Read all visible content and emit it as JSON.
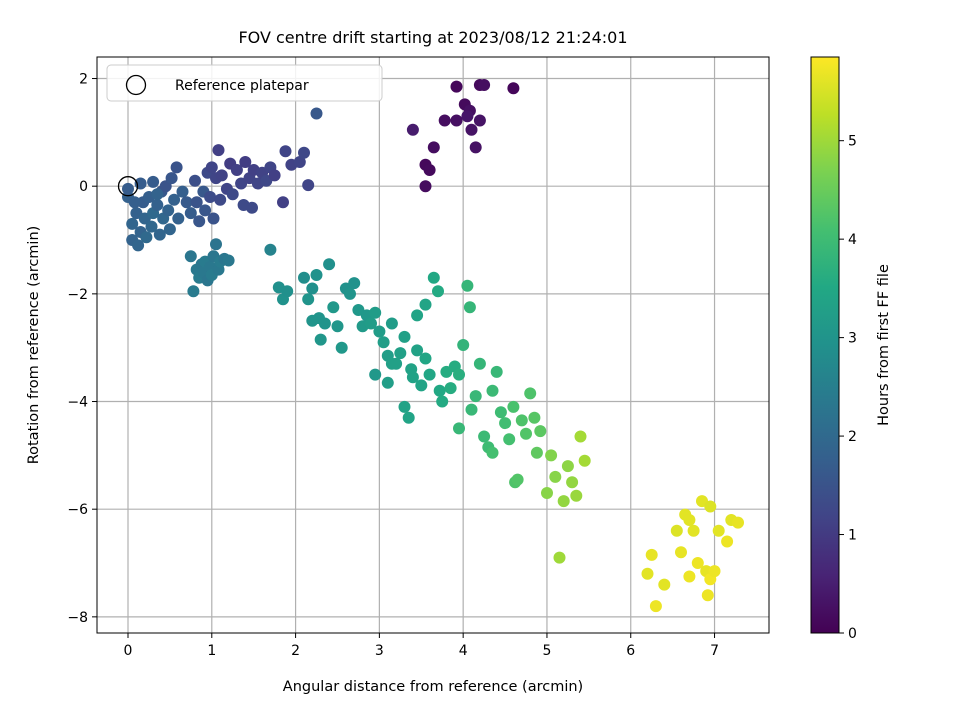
{
  "chart_data": {
    "type": "scatter",
    "title": "FOV centre drift starting at 2023/08/12 21:24:01",
    "xlabel": "Angular distance from reference (arcmin)",
    "ylabel": "Rotation from reference (arcmin)",
    "xlim": [
      -0.37,
      7.65
    ],
    "ylim": [
      -8.3,
      2.4
    ],
    "xticks": [
      0,
      1,
      2,
      3,
      4,
      5,
      6,
      7
    ],
    "yticks": [
      -8,
      -6,
      -4,
      -2,
      0,
      2
    ],
    "grid": true,
    "colormap": "viridis",
    "colorbar": {
      "label": "Hours from first FF file",
      "range": [
        0,
        5.85
      ],
      "ticks": [
        0,
        1,
        2,
        3,
        4,
        5
      ]
    },
    "legend": {
      "position": "top-left",
      "entries": [
        "Reference platepar"
      ]
    },
    "reference_point": {
      "x": 0,
      "y": 0
    },
    "series": [
      {
        "points": [
          [
            3.4,
            1.05,
            0.45
          ],
          [
            3.55,
            0.4,
            0.12
          ],
          [
            3.6,
            0.3,
            0.15
          ],
          [
            3.55,
            0.0,
            0.18
          ],
          [
            3.65,
            0.72,
            0.2
          ],
          [
            3.78,
            1.22,
            0.22
          ],
          [
            3.92,
            1.22,
            0.25
          ],
          [
            3.92,
            1.85,
            0.1
          ],
          [
            4.02,
            1.52,
            0.15
          ],
          [
            4.08,
            1.4,
            0.25
          ],
          [
            4.2,
            1.22,
            0.3
          ],
          [
            4.2,
            1.88,
            0.15
          ],
          [
            4.25,
            1.88,
            0.22
          ],
          [
            4.1,
            1.05,
            0.3
          ],
          [
            4.15,
            0.72,
            0.28
          ],
          [
            4.6,
            1.82,
            0.1
          ],
          [
            4.05,
            1.3,
            0.35
          ],
          [
            0.0,
            -0.2,
            1.8
          ],
          [
            0.05,
            -0.7,
            1.9
          ],
          [
            0.05,
            -1.0,
            1.85
          ],
          [
            0.1,
            -0.5,
            1.8
          ],
          [
            0.12,
            -1.1,
            1.9
          ],
          [
            0.15,
            -0.85,
            1.85
          ],
          [
            0.18,
            -0.3,
            1.7
          ],
          [
            0.2,
            -0.6,
            1.9
          ],
          [
            0.22,
            -0.95,
            2.0
          ],
          [
            0.25,
            -0.2,
            1.75
          ],
          [
            0.28,
            -0.75,
            1.95
          ],
          [
            0.3,
            0.08,
            1.7
          ],
          [
            0.3,
            -0.5,
            2.0
          ],
          [
            0.35,
            -0.35,
            1.8
          ],
          [
            0.38,
            -0.9,
            1.9
          ],
          [
            0.4,
            -0.1,
            1.6
          ],
          [
            0.42,
            -0.6,
            1.95
          ],
          [
            0.45,
            0.0,
            1.5
          ],
          [
            0.48,
            -0.45,
            1.85
          ],
          [
            0.5,
            -0.8,
            1.9
          ],
          [
            0.52,
            0.15,
            1.55
          ],
          [
            0.55,
            -0.25,
            1.8
          ],
          [
            0.58,
            0.35,
            1.5
          ],
          [
            0.6,
            -0.6,
            1.8
          ],
          [
            0.65,
            -0.1,
            1.75
          ],
          [
            0.7,
            -0.3,
            1.65
          ],
          [
            0.75,
            -0.5,
            1.7
          ],
          [
            0.8,
            0.1,
            1.4
          ],
          [
            0.82,
            -0.3,
            1.5
          ],
          [
            0.85,
            -0.65,
            1.55
          ],
          [
            0.9,
            -0.1,
            1.6
          ],
          [
            0.92,
            -0.45,
            1.55
          ],
          [
            0.95,
            0.25,
            1.3
          ],
          [
            0.98,
            -0.2,
            1.35
          ],
          [
            1.0,
            0.35,
            1.2
          ],
          [
            1.02,
            -0.6,
            1.5
          ],
          [
            1.05,
            0.15,
            1.2
          ],
          [
            1.08,
            0.67,
            1.1
          ],
          [
            1.1,
            -0.25,
            1.3
          ],
          [
            1.12,
            0.2,
            1.15
          ],
          [
            1.18,
            -0.05,
            1.2
          ],
          [
            1.22,
            0.42,
            1.05
          ],
          [
            1.25,
            -0.15,
            1.3
          ],
          [
            1.3,
            0.3,
            1.1
          ],
          [
            1.35,
            0.05,
            1.2
          ],
          [
            1.38,
            -0.35,
            1.3
          ],
          [
            1.4,
            0.45,
            1.05
          ],
          [
            1.45,
            0.15,
            1.15
          ],
          [
            1.48,
            -0.4,
            1.3
          ],
          [
            1.5,
            0.3,
            1.1
          ],
          [
            1.55,
            0.05,
            1.2
          ],
          [
            1.6,
            0.25,
            1.15
          ],
          [
            1.65,
            0.1,
            1.25
          ],
          [
            1.7,
            0.35,
            1.2
          ],
          [
            1.75,
            0.2,
            1.1
          ],
          [
            1.85,
            -0.3,
            1.1
          ],
          [
            1.88,
            0.65,
            1.2
          ],
          [
            1.95,
            0.4,
            1.15
          ],
          [
            2.05,
            0.45,
            1.2
          ],
          [
            2.1,
            0.62,
            1.25
          ],
          [
            2.15,
            0.02,
            1.2
          ],
          [
            2.25,
            1.35,
            1.6
          ],
          [
            0.0,
            -0.05,
            1.7
          ],
          [
            0.08,
            -0.3,
            1.75
          ],
          [
            0.15,
            0.05,
            1.7
          ],
          [
            0.35,
            -0.15,
            1.85
          ],
          [
            0.75,
            -1.3,
            2.3
          ],
          [
            0.78,
            -1.95,
            2.4
          ],
          [
            0.82,
            -1.55,
            2.35
          ],
          [
            0.85,
            -1.7,
            2.4
          ],
          [
            0.88,
            -1.45,
            2.3
          ],
          [
            0.9,
            -1.6,
            2.35
          ],
          [
            0.92,
            -1.4,
            2.4
          ],
          [
            0.95,
            -1.75,
            2.3
          ],
          [
            0.98,
            -1.5,
            2.35
          ],
          [
            1.0,
            -1.65,
            2.4
          ],
          [
            1.02,
            -1.3,
            2.3
          ],
          [
            1.05,
            -1.08,
            2.25
          ],
          [
            1.08,
            -1.55,
            2.35
          ],
          [
            1.1,
            -1.4,
            2.4
          ],
          [
            1.15,
            -1.35,
            2.3
          ],
          [
            1.2,
            -1.38,
            2.35
          ],
          [
            1.7,
            -1.18,
            2.6
          ],
          [
            1.8,
            -1.88,
            2.9
          ],
          [
            1.85,
            -2.1,
            2.95
          ],
          [
            1.9,
            -1.95,
            2.9
          ],
          [
            2.1,
            -1.7,
            2.85
          ],
          [
            2.15,
            -2.1,
            3.0
          ],
          [
            2.2,
            -1.9,
            2.9
          ],
          [
            2.25,
            -1.65,
            2.95
          ],
          [
            2.28,
            -2.45,
            3.0
          ],
          [
            2.3,
            -2.85,
            3.05
          ],
          [
            2.35,
            -2.55,
            3.0
          ],
          [
            2.4,
            -1.45,
            2.9
          ],
          [
            2.45,
            -2.25,
            3.1
          ],
          [
            2.5,
            -2.6,
            3.05
          ],
          [
            2.55,
            -3.0,
            3.1
          ],
          [
            2.6,
            -1.9,
            2.95
          ],
          [
            2.65,
            -2.0,
            3.0
          ],
          [
            2.7,
            -1.8,
            2.95
          ],
          [
            2.75,
            -2.3,
            3.1
          ],
          [
            2.8,
            -2.6,
            3.15
          ],
          [
            2.85,
            -2.4,
            3.1
          ],
          [
            2.9,
            -2.55,
            3.2
          ],
          [
            2.95,
            -2.35,
            3.2
          ],
          [
            3.0,
            -2.7,
            3.2
          ],
          [
            3.05,
            -2.9,
            3.25
          ],
          [
            3.1,
            -3.15,
            3.25
          ],
          [
            3.15,
            -2.55,
            3.2
          ],
          [
            3.2,
            -3.3,
            3.3
          ],
          [
            3.25,
            -3.1,
            3.3
          ],
          [
            3.3,
            -2.8,
            3.3
          ],
          [
            3.35,
            -4.3,
            3.4
          ],
          [
            3.38,
            -3.4,
            3.35
          ],
          [
            3.4,
            -3.55,
            3.35
          ],
          [
            3.45,
            -2.4,
            3.4
          ],
          [
            3.5,
            -3.7,
            3.4
          ],
          [
            3.55,
            -3.2,
            3.45
          ],
          [
            3.6,
            -3.5,
            3.45
          ],
          [
            3.65,
            -1.7,
            3.5
          ],
          [
            3.7,
            -1.95,
            3.55
          ],
          [
            3.72,
            -3.8,
            3.5
          ],
          [
            3.75,
            -4.0,
            3.55
          ],
          [
            3.8,
            -3.45,
            3.6
          ],
          [
            3.85,
            -3.75,
            3.6
          ],
          [
            3.9,
            -3.35,
            3.6
          ],
          [
            3.95,
            -3.5,
            3.65
          ],
          [
            2.2,
            -2.5,
            3.0
          ],
          [
            2.95,
            -3.5,
            3.1
          ],
          [
            3.1,
            -3.65,
            3.25
          ],
          [
            3.15,
            -3.3,
            3.3
          ],
          [
            3.3,
            -4.1,
            3.35
          ],
          [
            3.45,
            -3.05,
            3.35
          ],
          [
            3.55,
            -2.2,
            3.4
          ],
          [
            4.0,
            -2.95,
            3.8
          ],
          [
            4.05,
            -1.85,
            3.85
          ],
          [
            4.08,
            -2.25,
            3.85
          ],
          [
            4.1,
            -4.15,
            3.9
          ],
          [
            4.15,
            -3.9,
            3.9
          ],
          [
            4.2,
            -3.3,
            3.85
          ],
          [
            4.25,
            -4.65,
            3.95
          ],
          [
            4.3,
            -4.85,
            4.0
          ],
          [
            4.35,
            -3.8,
            3.95
          ],
          [
            4.4,
            -3.45,
            3.9
          ],
          [
            4.45,
            -4.2,
            4.0
          ],
          [
            4.5,
            -4.4,
            4.05
          ],
          [
            4.55,
            -4.7,
            4.1
          ],
          [
            4.6,
            -4.1,
            4.15
          ],
          [
            4.62,
            -5.5,
            4.2
          ],
          [
            4.65,
            -5.45,
            4.25
          ],
          [
            4.7,
            -4.35,
            4.2
          ],
          [
            4.75,
            -4.6,
            4.25
          ],
          [
            4.8,
            -3.85,
            4.2
          ],
          [
            4.85,
            -4.3,
            4.3
          ],
          [
            4.88,
            -4.95,
            4.4
          ],
          [
            4.92,
            -4.55,
            4.35
          ],
          [
            3.95,
            -4.5,
            3.9
          ],
          [
            4.35,
            -4.95,
            4.1
          ],
          [
            5.0,
            -5.7,
            4.8
          ],
          [
            5.05,
            -5.0,
            4.75
          ],
          [
            5.1,
            -5.4,
            4.8
          ],
          [
            5.15,
            -6.9,
            5.0
          ],
          [
            5.2,
            -5.85,
            4.9
          ],
          [
            5.25,
            -5.2,
            4.85
          ],
          [
            5.3,
            -5.5,
            4.9
          ],
          [
            5.35,
            -5.75,
            4.95
          ],
          [
            5.4,
            -4.65,
            5.05
          ],
          [
            5.45,
            -5.1,
            5.05
          ],
          [
            6.2,
            -7.2,
            5.6
          ],
          [
            6.25,
            -6.85,
            5.65
          ],
          [
            6.3,
            -7.8,
            5.7
          ],
          [
            6.4,
            -7.4,
            5.6
          ],
          [
            6.55,
            -6.4,
            5.55
          ],
          [
            6.6,
            -6.8,
            5.65
          ],
          [
            6.65,
            -6.1,
            5.6
          ],
          [
            6.7,
            -7.25,
            5.7
          ],
          [
            6.75,
            -6.4,
            5.6
          ],
          [
            6.8,
            -7.0,
            5.7
          ],
          [
            6.85,
            -5.85,
            5.6
          ],
          [
            6.9,
            -7.15,
            5.65
          ],
          [
            6.92,
            -7.6,
            5.7
          ],
          [
            6.95,
            -7.3,
            5.75
          ],
          [
            7.0,
            -7.15,
            5.7
          ],
          [
            7.05,
            -6.4,
            5.6
          ],
          [
            7.15,
            -6.6,
            5.7
          ],
          [
            7.2,
            -6.2,
            5.6
          ],
          [
            7.28,
            -6.25,
            5.65
          ],
          [
            6.7,
            -6.2,
            5.6
          ],
          [
            6.95,
            -5.95,
            5.55
          ]
        ]
      }
    ]
  }
}
